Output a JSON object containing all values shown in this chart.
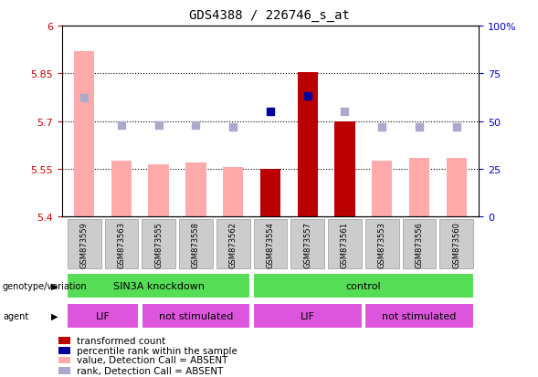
{
  "title": "GDS4388 / 226746_s_at",
  "samples": [
    "GSM873559",
    "GSM873563",
    "GSM873555",
    "GSM873558",
    "GSM873562",
    "GSM873554",
    "GSM873557",
    "GSM873561",
    "GSM873553",
    "GSM873556",
    "GSM873560"
  ],
  "bar_values": [
    5.92,
    5.575,
    5.565,
    5.57,
    5.555,
    5.55,
    5.855,
    5.7,
    5.575,
    5.585,
    5.585
  ],
  "bar_absent": [
    true,
    true,
    true,
    true,
    true,
    false,
    false,
    false,
    true,
    true,
    true
  ],
  "rank_values": [
    62,
    48,
    48,
    48,
    47,
    55,
    63,
    55,
    47,
    47,
    47
  ],
  "rank_absent": [
    true,
    true,
    true,
    true,
    true,
    false,
    false,
    true,
    true,
    true,
    true
  ],
  "ylim_left": [
    5.4,
    6.0
  ],
  "ylim_right": [
    0,
    100
  ],
  "yticks_left": [
    5.4,
    5.55,
    5.7,
    5.85,
    6.0
  ],
  "yticks_right": [
    0,
    25,
    50,
    75,
    100
  ],
  "ytick_labels_left": [
    "5.4",
    "5.55",
    "5.7",
    "5.85",
    "6"
  ],
  "ytick_labels_right": [
    "0",
    "25",
    "50",
    "75",
    "100%"
  ],
  "hlines": [
    5.55,
    5.7,
    5.85
  ],
  "bar_color_present": "#bb0000",
  "bar_color_absent": "#ffaaaa",
  "rank_color_present": "#000099",
  "rank_color_absent": "#aaaacc",
  "rank_marker_size": 40,
  "bar_width": 0.55,
  "legend_items": [
    {
      "label": "transformed count",
      "color": "#bb0000"
    },
    {
      "label": "percentile rank within the sample",
      "color": "#000099"
    },
    {
      "label": "value, Detection Call = ABSENT",
      "color": "#ffaaaa"
    },
    {
      "label": "rank, Detection Call = ABSENT",
      "color": "#aaaacc"
    }
  ],
  "left_label_color": "#cc0000",
  "right_label_color": "#0000cc",
  "genotype_label": "genotype/variation",
  "agent_label": "agent",
  "genotype_blocks": [
    {
      "label": "SIN3A knockdown",
      "start": 0,
      "end": 5
    },
    {
      "label": "control",
      "start": 5,
      "end": 11
    }
  ],
  "agent_blocks": [
    {
      "label": "LIF",
      "start": 0,
      "end": 2
    },
    {
      "label": "not stimulated",
      "start": 2,
      "end": 5
    },
    {
      "label": "LIF",
      "start": 5,
      "end": 8
    },
    {
      "label": "not stimulated",
      "start": 8,
      "end": 11
    }
  ],
  "genotype_color": "#55dd55",
  "agent_color": "#dd55dd"
}
